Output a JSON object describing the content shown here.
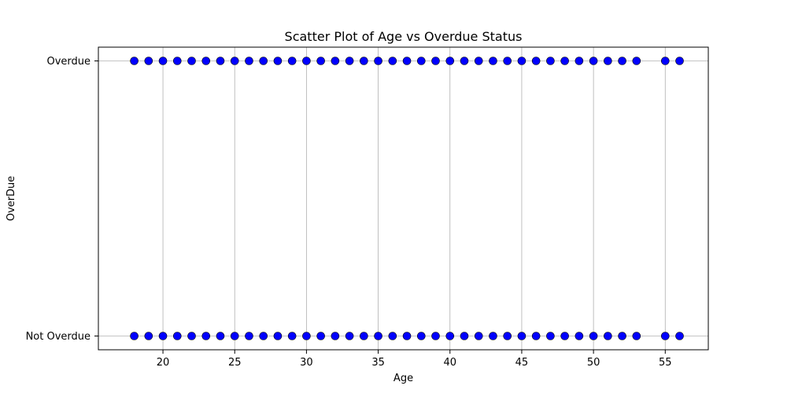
{
  "chart_data": {
    "type": "scatter",
    "title": "Scatter Plot of Age vs Overdue Status",
    "xlabel": "Age",
    "ylabel": "OverDue",
    "xlim": [
      15.5,
      58
    ],
    "ylim": [
      -0.05,
      1.05
    ],
    "x_ticks": [
      20,
      25,
      30,
      35,
      40,
      45,
      50,
      55
    ],
    "y_ticks": [
      0,
      1
    ],
    "y_tick_labels": [
      "Not Overdue",
      "Overdue"
    ],
    "grid": true,
    "marker_color": "#0000ff",
    "marker_edge_color": "#000000",
    "series": [
      {
        "y": 1,
        "x": [
          18,
          19,
          20,
          21,
          22,
          23,
          24,
          25,
          26,
          27,
          28,
          29,
          30,
          31,
          32,
          33,
          34,
          35,
          36,
          37,
          38,
          39,
          40,
          41,
          42,
          43,
          44,
          45,
          46,
          47,
          48,
          49,
          50,
          51,
          52,
          53,
          55,
          56
        ]
      },
      {
        "y": 0,
        "x": [
          18,
          19,
          20,
          21,
          22,
          23,
          24,
          25,
          26,
          27,
          28,
          29,
          30,
          31,
          32,
          33,
          34,
          35,
          36,
          37,
          38,
          39,
          40,
          41,
          42,
          43,
          44,
          45,
          46,
          47,
          48,
          49,
          50,
          51,
          52,
          53,
          55,
          56
        ]
      }
    ]
  }
}
